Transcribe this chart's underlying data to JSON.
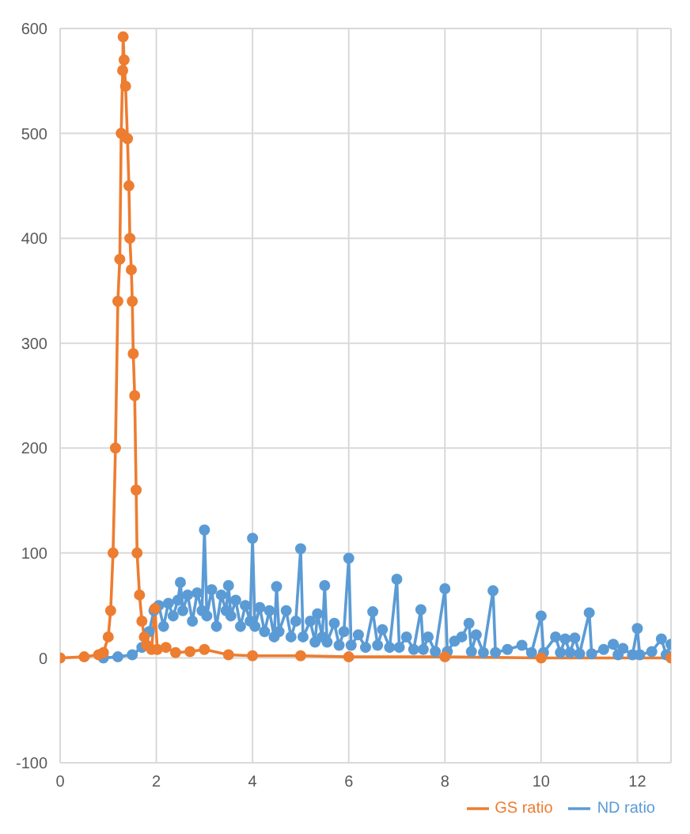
{
  "chart_data": {
    "type": "line",
    "xlim": [
      0,
      12.7
    ],
    "xticks": [
      0,
      2,
      4,
      6,
      8,
      10,
      12
    ],
    "ylim": [
      -100,
      600
    ],
    "yticks": [
      -100,
      0,
      100,
      200,
      300,
      400,
      500,
      600
    ],
    "grid": true,
    "legend": "bottom",
    "marker": "circle",
    "line_style": "solid",
    "series": [
      {
        "name": "ND ratio",
        "color": "#5b9bd5",
        "x": [
          0.9,
          1.2,
          1.5,
          1.7,
          1.85,
          1.95,
          2.05,
          2.15,
          2.25,
          2.35,
          2.45,
          2.5,
          2.55,
          2.65,
          2.75,
          2.85,
          2.95,
          3.0,
          3.05,
          3.15,
          3.25,
          3.35,
          3.45,
          3.5,
          3.55,
          3.65,
          3.75,
          3.85,
          3.95,
          4.0,
          4.05,
          4.15,
          4.25,
          4.35,
          4.45,
          4.5,
          4.55,
          4.7,
          4.8,
          4.9,
          5.0,
          5.05,
          5.2,
          5.3,
          5.35,
          5.45,
          5.5,
          5.55,
          5.7,
          5.8,
          5.9,
          6.0,
          6.05,
          6.2,
          6.35,
          6.5,
          6.6,
          6.7,
          6.85,
          7.0,
          7.05,
          7.2,
          7.35,
          7.5,
          7.55,
          7.65,
          7.8,
          8.0,
          8.05,
          8.2,
          8.35,
          8.5,
          8.55,
          8.65,
          8.8,
          9.0,
          9.05,
          9.3,
          9.6,
          9.8,
          10.0,
          10.05,
          10.3,
          10.4,
          10.5,
          10.6,
          10.7,
          10.8,
          11.0,
          11.05,
          11.3,
          11.5,
          11.6,
          11.7,
          11.9,
          12.0,
          12.05,
          12.3,
          12.5,
          12.6,
          12.7
        ],
        "values": [
          0,
          1,
          3,
          10,
          25,
          45,
          50,
          30,
          52,
          40,
          55,
          72,
          45,
          60,
          35,
          62,
          45,
          122,
          40,
          65,
          30,
          60,
          45,
          69,
          40,
          55,
          30,
          50,
          35,
          114,
          30,
          48,
          25,
          45,
          20,
          68,
          25,
          45,
          20,
          35,
          104,
          20,
          35,
          15,
          42,
          20,
          69,
          15,
          33,
          12,
          25,
          95,
          12,
          22,
          10,
          44,
          12,
          27,
          10,
          75,
          10,
          20,
          8,
          46,
          8,
          20,
          6,
          66,
          6,
          16,
          20,
          33,
          6,
          22,
          5,
          64,
          5,
          8,
          12,
          5,
          40,
          5,
          20,
          5,
          18,
          5,
          19,
          4,
          43,
          4,
          8,
          13,
          3,
          9,
          3,
          28,
          3,
          6,
          18,
          3,
          13
        ]
      },
      {
        "name": "GS ratio",
        "color": "#ed7d31",
        "x": [
          0,
          0.5,
          0.8,
          0.9,
          1.0,
          1.05,
          1.1,
          1.15,
          1.2,
          1.24,
          1.27,
          1.3,
          1.31,
          1.33,
          1.36,
          1.4,
          1.43,
          1.45,
          1.48,
          1.5,
          1.52,
          1.55,
          1.58,
          1.6,
          1.65,
          1.7,
          1.75,
          1.8,
          1.9,
          1.97,
          2.02,
          2.2,
          2.4,
          2.7,
          3.0,
          3.5,
          4.0,
          5.0,
          6.0,
          8.0,
          10.0,
          12.7
        ],
        "values": [
          0,
          1,
          3,
          5,
          20,
          45,
          100,
          200,
          340,
          380,
          500,
          560,
          592,
          570,
          545,
          495,
          450,
          400,
          370,
          340,
          290,
          250,
          160,
          100,
          60,
          35,
          20,
          12,
          8,
          47,
          8,
          10,
          5,
          6,
          8,
          3,
          2,
          2,
          1,
          1,
          0,
          0
        ]
      }
    ]
  }
}
